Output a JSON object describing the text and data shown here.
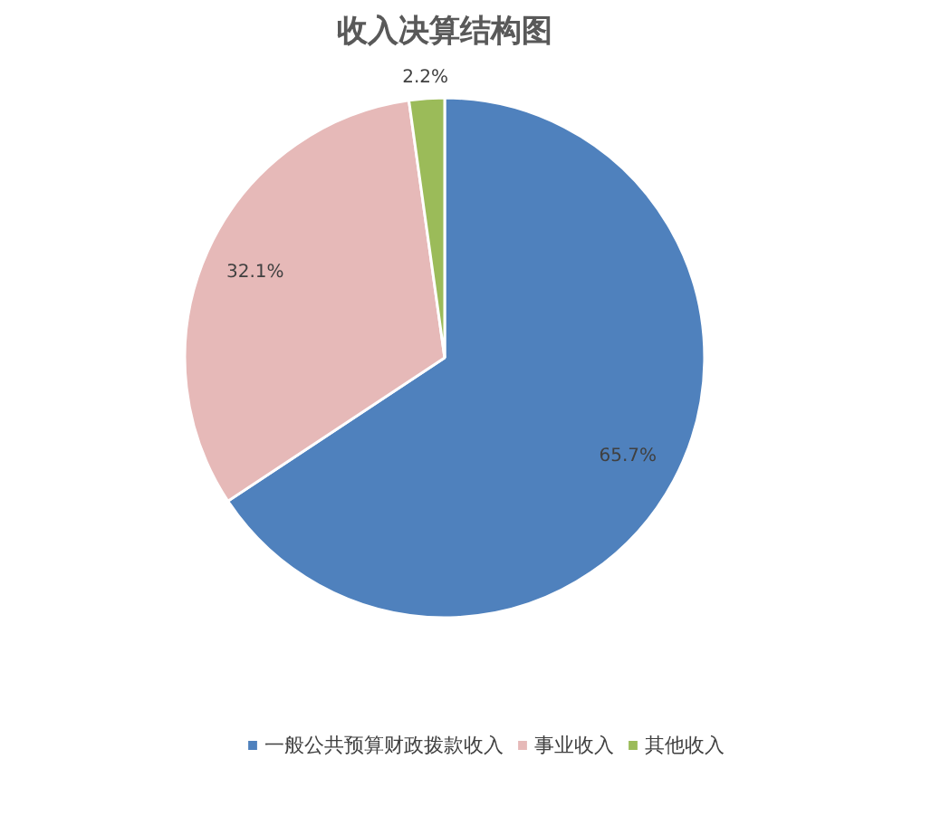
{
  "chart_data": {
    "type": "pie",
    "title": "收入决算结构图",
    "categories": [
      "一般公共预算财政拨款收入",
      "事业收入",
      "其他收入"
    ],
    "values": [
      65.7,
      32.1,
      2.2
    ],
    "colors": [
      "#4f81bd",
      "#e6b9b8",
      "#9bbb59"
    ],
    "value_labels": [
      "65.7%",
      "32.1%",
      "2.2%"
    ],
    "legend": "bottom"
  }
}
